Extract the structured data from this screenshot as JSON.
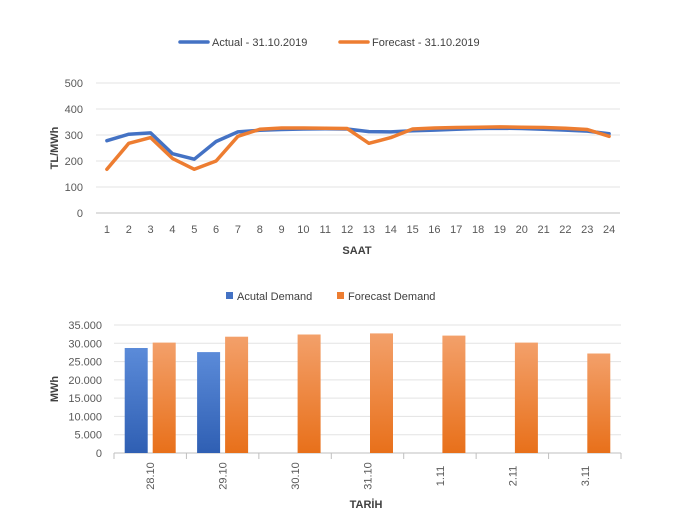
{
  "chart_data": [
    {
      "type": "line",
      "x": [
        1,
        2,
        3,
        4,
        5,
        6,
        7,
        8,
        9,
        10,
        11,
        12,
        13,
        14,
        15,
        16,
        17,
        18,
        19,
        20,
        21,
        22,
        23,
        24
      ],
      "series": [
        {
          "name": "Actual - 31.10.2019",
          "color": "#4472C4",
          "values": [
            278,
            303,
            308,
            228,
            207,
            275,
            312,
            318,
            321,
            323,
            324,
            323,
            313,
            312,
            316,
            319,
            322,
            325,
            326,
            325,
            322,
            319,
            315,
            305
          ]
        },
        {
          "name": "Forecast - 31.10.2019",
          "color": "#ED7D31",
          "values": [
            168,
            268,
            290,
            210,
            168,
            200,
            295,
            322,
            327,
            327,
            326,
            325,
            268,
            290,
            323,
            327,
            329,
            330,
            331,
            330,
            329,
            326,
            321,
            295
          ]
        }
      ],
      "xlabel": "SAAT",
      "ylabel": "TL/MWh",
      "ylim": [
        0,
        500
      ],
      "yticks": [
        "0",
        "100",
        "200",
        "300",
        "400",
        "500"
      ],
      "grid": true,
      "legend": "top"
    },
    {
      "type": "bar",
      "categories": [
        "28.10",
        "29.10",
        "30.10",
        "31.10",
        "1.11",
        "2.11",
        "3.11"
      ],
      "series": [
        {
          "name": "Acutal Demand",
          "color": "#4472C4",
          "values": [
            28700,
            27600,
            null,
            null,
            null,
            null,
            null
          ]
        },
        {
          "name": "Forecast Demand",
          "color": "#ED7D31",
          "values": [
            30200,
            31800,
            32400,
            32700,
            32100,
            30200,
            27200
          ]
        }
      ],
      "xlabel": "TARİH",
      "ylabel": "MWh",
      "ylim": [
        0,
        35000
      ],
      "yticks": [
        "0",
        "5.000",
        "10.000",
        "15.000",
        "20.000",
        "25.000",
        "30.000",
        "35.000"
      ],
      "grid": true,
      "legend": "top"
    }
  ]
}
